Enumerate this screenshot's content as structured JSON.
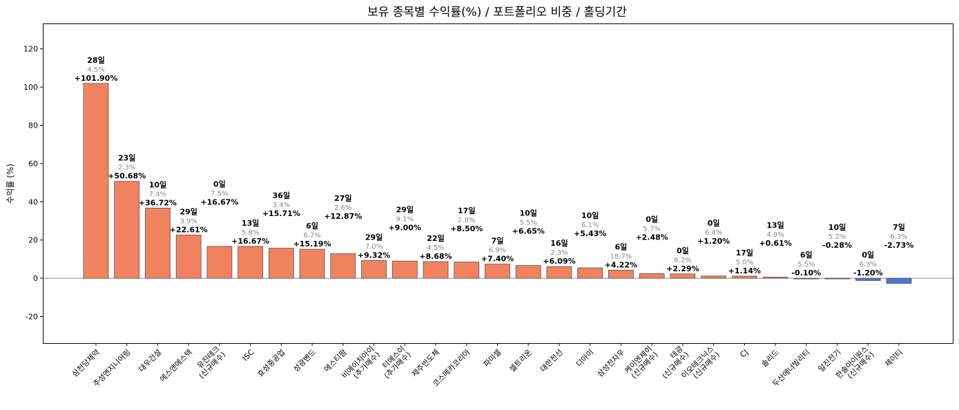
{
  "chart_data": {
    "type": "bar",
    "title": "보유 종목별 수익률(%) / 포트폴리오 비중 / 홀딩기간",
    "xlabel": "",
    "ylabel": "수익률 (%)",
    "ylim": [
      -33.9,
      132.9
    ],
    "yticks": [
      -20,
      0,
      20,
      40,
      60,
      80,
      100,
      120
    ],
    "grid": false,
    "colors": {
      "positive": "#F0825F",
      "negative": "#4A76D6",
      "edge": "#555555",
      "weight_text": "#888888"
    },
    "categories": [
      "삼천당제약",
      "주성엔지니어링",
      "대우건설",
      "에스앤에스텍",
      "유진테크\n(신규매수)",
      "ISC",
      "효성중공업",
      "성광벤드",
      "에스티팜",
      "비에이치아이\n(추가매수)",
      "티에스이\n(추가매수)",
      "제주반도체",
      "코스메카코리아",
      "파미셀",
      "셀트리온",
      "대한전선",
      "디아이",
      "삼성전자우",
      "케이엔제이\n(신규매수)",
      "태광\n(신규매수)",
      "이오테크닉스\n(신규매수)",
      "CJ",
      "솔리드",
      "두산에너빌리티",
      "일진전기",
      "한솔아이원스\n(신규매수)",
      "제이티"
    ],
    "values": [
      101.9,
      50.68,
      36.72,
      22.61,
      16.67,
      16.67,
      15.71,
      15.19,
      12.87,
      9.32,
      9.0,
      8.68,
      8.5,
      7.4,
      6.65,
      6.09,
      5.43,
      4.22,
      2.48,
      2.29,
      1.2,
      1.14,
      0.61,
      -0.1,
      -0.28,
      -1.2,
      -2.73
    ],
    "return_labels": [
      "+101.90%",
      "+50.68%",
      "+36.72%",
      "+22.61%",
      "+16.67%",
      "+16.67%",
      "+15.71%",
      "+15.19%",
      "+12.87%",
      "+9.32%",
      "+9.00%",
      "+8.68%",
      "+8.50%",
      "+7.40%",
      "+6.65%",
      "+6.09%",
      "+5.43%",
      "+4.22%",
      "+2.48%",
      "+2.29%",
      "+1.20%",
      "+1.14%",
      "+0.61%",
      "-0.10%",
      "-0.28%",
      "-1.20%",
      "-2.73%"
    ],
    "weight_labels": [
      "4.5%",
      "2.3%",
      "7.4%",
      "3.9%",
      "7.5%",
      "5.8%",
      "3.4%",
      "6.7%",
      "2.6%",
      "7.0%",
      "9.1%",
      "4.5%",
      "2.8%",
      "6.9%",
      "5.5%",
      "2.3%",
      "6.1%",
      "18.7%",
      "5.7%",
      "6.2%",
      "6.4%",
      "5.0%",
      "4.9%",
      "5.5%",
      "5.2%",
      "6.3%",
      "6.3%"
    ],
    "holding_labels": [
      "28일",
      "23일",
      "10일",
      "29일",
      "0일",
      "13일",
      "36일",
      "6일",
      "27일",
      "29일",
      "29일",
      "22일",
      "17일",
      "7일",
      "10일",
      "16일",
      "10일",
      "6일",
      "0일",
      "0일",
      "0일",
      "17일",
      "13일",
      "6일",
      "10일",
      "0일",
      "7일"
    ]
  }
}
